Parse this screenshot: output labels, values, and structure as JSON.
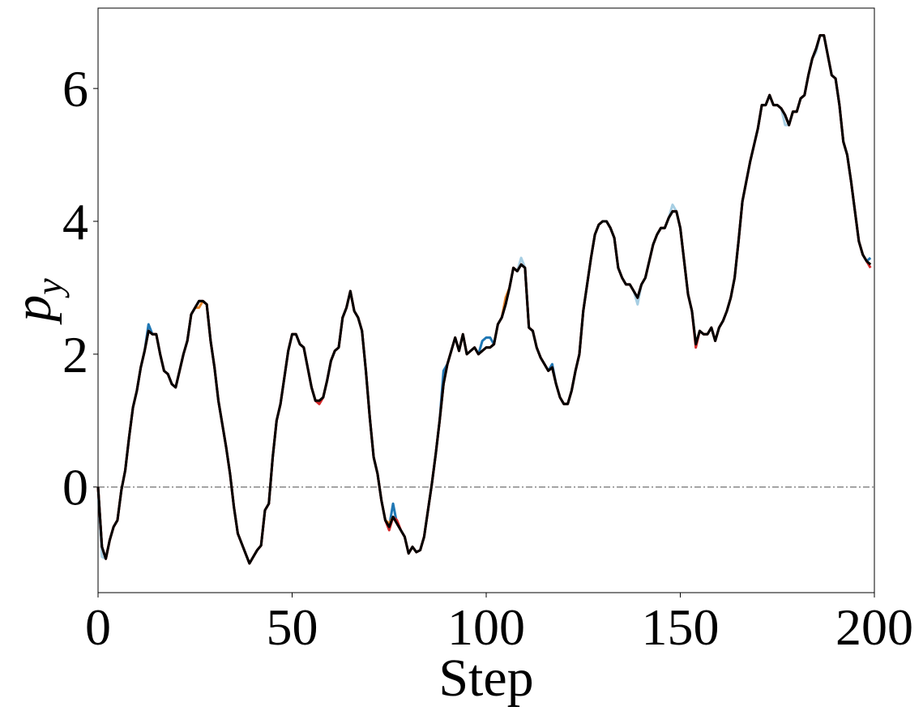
{
  "chart_data": {
    "type": "line",
    "xlabel": "Step",
    "ylabel": [
      "p",
      "y"
    ],
    "xlim": [
      0,
      200
    ],
    "ylim": [
      -1.59,
      7.21
    ],
    "xticks": [
      0,
      50,
      100,
      150,
      200
    ],
    "yticks": [
      0,
      2,
      4,
      6
    ],
    "hlines": [
      0
    ],
    "hline_color": "#888888",
    "x": [
      0,
      1,
      2,
      3,
      4,
      5,
      6,
      7,
      8,
      9,
      10,
      11,
      12,
      13,
      14,
      15,
      16,
      17,
      18,
      19,
      20,
      21,
      22,
      23,
      24,
      25,
      26,
      27,
      28,
      29,
      30,
      31,
      32,
      33,
      34,
      35,
      36,
      37,
      38,
      39,
      40,
      41,
      42,
      43,
      44,
      45,
      46,
      47,
      48,
      49,
      50,
      51,
      52,
      53,
      54,
      55,
      56,
      57,
      58,
      59,
      60,
      61,
      62,
      63,
      64,
      65,
      66,
      67,
      68,
      69,
      70,
      71,
      72,
      73,
      74,
      75,
      76,
      77,
      78,
      79,
      80,
      81,
      82,
      83,
      84,
      85,
      86,
      87,
      88,
      89,
      90,
      91,
      92,
      93,
      94,
      95,
      96,
      97,
      98,
      99,
      100,
      101,
      102,
      103,
      104,
      105,
      106,
      107,
      108,
      109,
      110,
      111,
      112,
      113,
      114,
      115,
      116,
      117,
      118,
      119,
      120,
      121,
      122,
      123,
      124,
      125,
      126,
      127,
      128,
      129,
      130,
      131,
      132,
      133,
      134,
      135,
      136,
      137,
      138,
      139,
      140,
      141,
      142,
      143,
      144,
      145,
      146,
      147,
      148,
      149,
      150,
      151,
      152,
      153,
      154,
      155,
      156,
      157,
      158,
      159,
      160,
      161,
      162,
      163,
      164,
      165,
      166,
      167,
      168,
      169,
      170,
      171,
      172,
      173,
      174,
      175,
      176,
      177,
      178,
      179,
      180,
      181,
      182,
      183,
      184,
      185,
      186,
      187,
      188,
      189,
      190,
      191,
      192,
      193,
      194,
      195,
      196,
      197,
      198,
      199
    ],
    "series": [
      {
        "color": "#a6cee3",
        "values": [
          -0.1,
          -1.05,
          -1.08,
          -0.8,
          -0.6,
          -0.5,
          -0.05,
          0.25,
          0.75,
          1.2,
          1.45,
          1.8,
          2.05,
          2.35,
          2.3,
          2.3,
          2,
          1.75,
          1.7,
          1.55,
          1.5,
          1.75,
          2,
          2.2,
          2.6,
          2.7,
          2.8,
          2.8,
          2.75,
          2.2,
          1.8,
          1.3,
          0.95,
          0.6,
          0.2,
          -0.3,
          -0.7,
          -0.85,
          -1,
          -1.15,
          -1.05,
          -0.95,
          -0.88,
          -0.35,
          -0.25,
          0.45,
          1,
          1.25,
          1.65,
          2.05,
          2.3,
          2.3,
          2.15,
          2.1,
          1.8,
          1.5,
          1.3,
          1.3,
          1.35,
          1.6,
          1.9,
          2.05,
          2.1,
          2.55,
          2.7,
          2.95,
          2.65,
          2.55,
          2.35,
          1.75,
          1.05,
          0.45,
          0.2,
          -0.2,
          -0.5,
          -0.6,
          -0.45,
          -0.55,
          -0.65,
          -0.75,
          -1,
          -0.9,
          -0.98,
          -0.95,
          -0.75,
          -0.35,
          0.05,
          0.5,
          1,
          1.55,
          1.85,
          2.05,
          2.25,
          2.05,
          2.3,
          2,
          2.05,
          2.1,
          2,
          2.05,
          2.1,
          2.1,
          2.15,
          2.45,
          2.55,
          2.75,
          3,
          3.3,
          3.25,
          3.45,
          3.3,
          2.4,
          2.35,
          2.1,
          1.95,
          1.85,
          1.75,
          1.8,
          1.55,
          1.35,
          1.25,
          1.25,
          1.45,
          1.75,
          2,
          2.65,
          3.05,
          3.45,
          3.8,
          3.95,
          4,
          4,
          3.9,
          3.75,
          3.3,
          3.15,
          3.05,
          3.05,
          2.95,
          2.75,
          3.05,
          3.15,
          3.4,
          3.65,
          3.8,
          3.9,
          3.9,
          4.05,
          4.25,
          4.15,
          3.9,
          3.4,
          2.9,
          2.65,
          2.15,
          2.35,
          2.3,
          2.3,
          2.4,
          2.2,
          2.4,
          2.5,
          2.65,
          2.85,
          3.15,
          3.7,
          4.3,
          4.6,
          4.9,
          5.15,
          5.4,
          5.75,
          5.75,
          5.9,
          5.75,
          5.75,
          5.7,
          5.45,
          5.45,
          5.65,
          5.65,
          5.85,
          5.9,
          6.2,
          6.45,
          6.55,
          6.8,
          6.8,
          6.5,
          6.2,
          6.15,
          5.75,
          5.2,
          5,
          4.6,
          4.15,
          3.7,
          3.5,
          3.4,
          3.35
        ]
      },
      {
        "color": "#1f77b4",
        "values": [
          0,
          -0.9,
          -1.08,
          -0.8,
          -0.6,
          -0.5,
          -0.05,
          0.25,
          0.75,
          1.2,
          1.45,
          1.8,
          2.05,
          2.45,
          2.3,
          2.3,
          2,
          1.75,
          1.7,
          1.55,
          1.5,
          1.75,
          2,
          2.2,
          2.6,
          2.7,
          2.8,
          2.8,
          2.75,
          2.2,
          1.8,
          1.3,
          0.95,
          0.6,
          0.2,
          -0.3,
          -0.7,
          -0.85,
          -1,
          -1.15,
          -1.05,
          -0.95,
          -0.88,
          -0.35,
          -0.25,
          0.45,
          1,
          1.25,
          1.65,
          2.05,
          2.3,
          2.3,
          2.15,
          2.1,
          1.8,
          1.5,
          1.3,
          1.3,
          1.35,
          1.6,
          1.9,
          2.05,
          2.1,
          2.55,
          2.7,
          2.95,
          2.65,
          2.55,
          2.35,
          1.75,
          1.05,
          0.45,
          0.2,
          -0.2,
          -0.5,
          -0.6,
          -0.25,
          -0.55,
          -0.65,
          -0.75,
          -1,
          -0.9,
          -0.98,
          -0.95,
          -0.75,
          -0.35,
          0.05,
          0.5,
          1,
          1.75,
          1.85,
          2.05,
          2.25,
          2.05,
          2.3,
          2,
          2.05,
          2.1,
          2,
          2.2,
          2.25,
          2.25,
          2.15,
          2.45,
          2.55,
          2.75,
          3,
          3.3,
          3.25,
          3.35,
          3.3,
          2.4,
          2.35,
          2.1,
          1.95,
          1.85,
          1.75,
          1.85,
          1.55,
          1.35,
          1.25,
          1.25,
          1.45,
          1.75,
          2,
          2.65,
          3.05,
          3.45,
          3.8,
          3.95,
          4,
          4,
          3.9,
          3.75,
          3.3,
          3.15,
          3.05,
          3.05,
          2.95,
          2.85,
          3.05,
          3.15,
          3.4,
          3.65,
          3.8,
          3.9,
          3.9,
          4.05,
          4.15,
          4.15,
          3.9,
          3.4,
          2.9,
          2.65,
          2.15,
          2.35,
          2.3,
          2.3,
          2.4,
          2.2,
          2.4,
          2.5,
          2.65,
          2.85,
          3.15,
          3.7,
          4.3,
          4.6,
          4.9,
          5.15,
          5.4,
          5.75,
          5.75,
          5.9,
          5.75,
          5.75,
          5.7,
          5.6,
          5.45,
          5.65,
          5.65,
          5.85,
          5.9,
          6.2,
          6.45,
          6.6,
          6.8,
          6.8,
          6.5,
          6.2,
          6.15,
          5.75,
          5.2,
          5,
          4.6,
          4.15,
          3.7,
          3.5,
          3.4,
          3.45
        ]
      },
      {
        "color": "#e6862a",
        "values": [
          0,
          -0.9,
          -1.08,
          -0.8,
          -0.6,
          -0.5,
          -0.05,
          0.25,
          0.75,
          1.2,
          1.45,
          1.8,
          2.05,
          2.35,
          2.3,
          2.3,
          2,
          1.75,
          1.7,
          1.55,
          1.5,
          1.75,
          2,
          2.2,
          2.6,
          2.7,
          2.7,
          2.8,
          2.75,
          2.2,
          1.8,
          1.3,
          0.95,
          0.6,
          0.2,
          -0.3,
          -0.7,
          -0.85,
          -1,
          -1.15,
          -1.05,
          -0.95,
          -0.88,
          -0.35,
          -0.25,
          0.45,
          1,
          1.25,
          1.65,
          2.05,
          2.3,
          2.3,
          2.15,
          2.1,
          1.8,
          1.5,
          1.3,
          1.3,
          1.35,
          1.6,
          1.9,
          2.05,
          2.1,
          2.55,
          2.7,
          2.95,
          2.65,
          2.55,
          2.35,
          1.75,
          1.05,
          0.45,
          0.2,
          -0.2,
          -0.5,
          -0.55,
          -0.45,
          -0.55,
          -0.65,
          -0.75,
          -1,
          -0.9,
          -0.98,
          -0.95,
          -0.75,
          -0.35,
          0.05,
          0.5,
          1,
          1.55,
          1.85,
          2.05,
          2.25,
          2.05,
          2.3,
          2,
          2.05,
          2.1,
          2,
          2.05,
          2.1,
          2.1,
          2.15,
          2.45,
          2.55,
          2.85,
          3,
          3.3,
          3.25,
          3.35,
          3.3,
          2.4,
          2.35,
          2.1,
          1.95,
          1.85,
          1.75,
          1.8,
          1.55,
          1.35,
          1.25,
          1.25,
          1.45,
          1.75,
          2,
          2.65,
          3.05,
          3.45,
          3.8,
          3.95,
          4,
          4,
          3.9,
          3.75,
          3.3,
          3.15,
          3.05,
          3.05,
          2.95,
          2.85,
          3.05,
          3.15,
          3.4,
          3.65,
          3.8,
          3.9,
          3.9,
          4.05,
          4.15,
          4.15,
          3.9,
          3.4,
          2.9,
          2.65,
          2.15,
          2.35,
          2.3,
          2.3,
          2.4,
          2.2,
          2.4,
          2.5,
          2.65,
          2.85,
          3.15,
          3.7,
          4.3,
          4.6,
          4.9,
          5.15,
          5.4,
          5.75,
          5.75,
          5.9,
          5.75,
          5.75,
          5.7,
          5.6,
          5.45,
          5.65,
          5.65,
          5.85,
          5.9,
          6.2,
          6.45,
          6.6,
          6.8,
          6.8,
          6.5,
          6.2,
          6.15,
          5.75,
          5.2,
          5,
          4.6,
          4.15,
          3.7,
          3.5,
          3.4,
          3.35
        ]
      },
      {
        "color": "#d62728",
        "values": [
          0,
          -0.9,
          -1.08,
          -0.8,
          -0.6,
          -0.5,
          -0.05,
          0.25,
          0.75,
          1.2,
          1.45,
          1.8,
          2.05,
          2.35,
          2.3,
          2.3,
          2,
          1.75,
          1.7,
          1.55,
          1.5,
          1.75,
          2,
          2.2,
          2.6,
          2.7,
          2.8,
          2.8,
          2.75,
          2.2,
          1.8,
          1.3,
          0.95,
          0.6,
          0.2,
          -0.3,
          -0.7,
          -0.85,
          -1,
          -1.15,
          -1.05,
          -0.95,
          -0.88,
          -0.35,
          -0.25,
          0.45,
          1,
          1.25,
          1.65,
          2.05,
          2.3,
          2.3,
          2.15,
          2.1,
          1.8,
          1.5,
          1.3,
          1.25,
          1.35,
          1.6,
          1.9,
          2.05,
          2.1,
          2.55,
          2.7,
          2.95,
          2.65,
          2.55,
          2.35,
          1.75,
          1.05,
          0.45,
          0.2,
          -0.2,
          -0.5,
          -0.65,
          -0.45,
          -0.5,
          -0.65,
          -0.75,
          -1,
          -0.9,
          -0.98,
          -0.95,
          -0.75,
          -0.35,
          0.05,
          0.5,
          1,
          1.55,
          1.85,
          2.05,
          2.25,
          2.05,
          2.3,
          2,
          2.05,
          2.1,
          2,
          2.05,
          2.1,
          2.1,
          2.15,
          2.45,
          2.55,
          2.75,
          3,
          3.3,
          3.25,
          3.35,
          3.3,
          2.4,
          2.35,
          2.1,
          1.95,
          1.85,
          1.75,
          1.8,
          1.55,
          1.35,
          1.25,
          1.25,
          1.45,
          1.75,
          2,
          2.65,
          3.05,
          3.45,
          3.8,
          3.95,
          4,
          4,
          3.9,
          3.75,
          3.3,
          3.15,
          3.05,
          3.05,
          2.95,
          2.85,
          3.05,
          3.15,
          3.4,
          3.65,
          3.8,
          3.9,
          3.9,
          4.05,
          4.15,
          4.15,
          3.9,
          3.4,
          2.9,
          2.65,
          2.1,
          2.35,
          2.3,
          2.3,
          2.4,
          2.2,
          2.4,
          2.5,
          2.65,
          2.85,
          3.15,
          3.7,
          4.3,
          4.6,
          4.9,
          5.15,
          5.4,
          5.75,
          5.75,
          5.9,
          5.75,
          5.75,
          5.7,
          5.6,
          5.45,
          5.65,
          5.65,
          5.85,
          5.9,
          6.2,
          6.45,
          6.6,
          6.8,
          6.8,
          6.5,
          6.2,
          6.15,
          5.75,
          5.2,
          5,
          4.6,
          4.15,
          3.7,
          3.5,
          3.4,
          3.3
        ]
      },
      {
        "color": "#000000",
        "values": [
          0,
          -0.9,
          -1.08,
          -0.8,
          -0.6,
          -0.5,
          -0.05,
          0.25,
          0.75,
          1.2,
          1.45,
          1.8,
          2.05,
          2.35,
          2.3,
          2.3,
          2,
          1.75,
          1.7,
          1.55,
          1.5,
          1.75,
          2,
          2.2,
          2.6,
          2.7,
          2.8,
          2.8,
          2.75,
          2.2,
          1.8,
          1.3,
          0.95,
          0.6,
          0.2,
          -0.3,
          -0.7,
          -0.85,
          -1,
          -1.15,
          -1.05,
          -0.95,
          -0.88,
          -0.35,
          -0.25,
          0.45,
          1,
          1.25,
          1.65,
          2.05,
          2.3,
          2.3,
          2.15,
          2.1,
          1.8,
          1.5,
          1.3,
          1.3,
          1.35,
          1.6,
          1.9,
          2.05,
          2.1,
          2.55,
          2.7,
          2.95,
          2.65,
          2.55,
          2.35,
          1.75,
          1.05,
          0.45,
          0.2,
          -0.2,
          -0.5,
          -0.6,
          -0.45,
          -0.55,
          -0.65,
          -0.75,
          -1,
          -0.9,
          -0.98,
          -0.95,
          -0.75,
          -0.35,
          0.05,
          0.5,
          1,
          1.55,
          1.85,
          2.05,
          2.25,
          2.05,
          2.3,
          2,
          2.05,
          2.1,
          2,
          2.05,
          2.1,
          2.1,
          2.15,
          2.45,
          2.55,
          2.75,
          3,
          3.3,
          3.25,
          3.35,
          3.3,
          2.4,
          2.35,
          2.1,
          1.95,
          1.85,
          1.75,
          1.8,
          1.55,
          1.35,
          1.25,
          1.25,
          1.45,
          1.75,
          2,
          2.65,
          3.05,
          3.45,
          3.8,
          3.95,
          4,
          4,
          3.9,
          3.75,
          3.3,
          3.15,
          3.05,
          3.05,
          2.95,
          2.85,
          3.05,
          3.15,
          3.4,
          3.65,
          3.8,
          3.9,
          3.9,
          4.05,
          4.15,
          4.15,
          3.9,
          3.4,
          2.9,
          2.65,
          2.15,
          2.35,
          2.3,
          2.3,
          2.4,
          2.2,
          2.4,
          2.5,
          2.65,
          2.85,
          3.15,
          3.7,
          4.3,
          4.6,
          4.9,
          5.15,
          5.4,
          5.75,
          5.75,
          5.9,
          5.75,
          5.75,
          5.7,
          5.6,
          5.45,
          5.65,
          5.65,
          5.85,
          5.9,
          6.2,
          6.45,
          6.6,
          6.8,
          6.8,
          6.5,
          6.2,
          6.15,
          5.75,
          5.2,
          5,
          4.6,
          4.15,
          3.7,
          3.5,
          3.4,
          3.35
        ]
      }
    ]
  }
}
